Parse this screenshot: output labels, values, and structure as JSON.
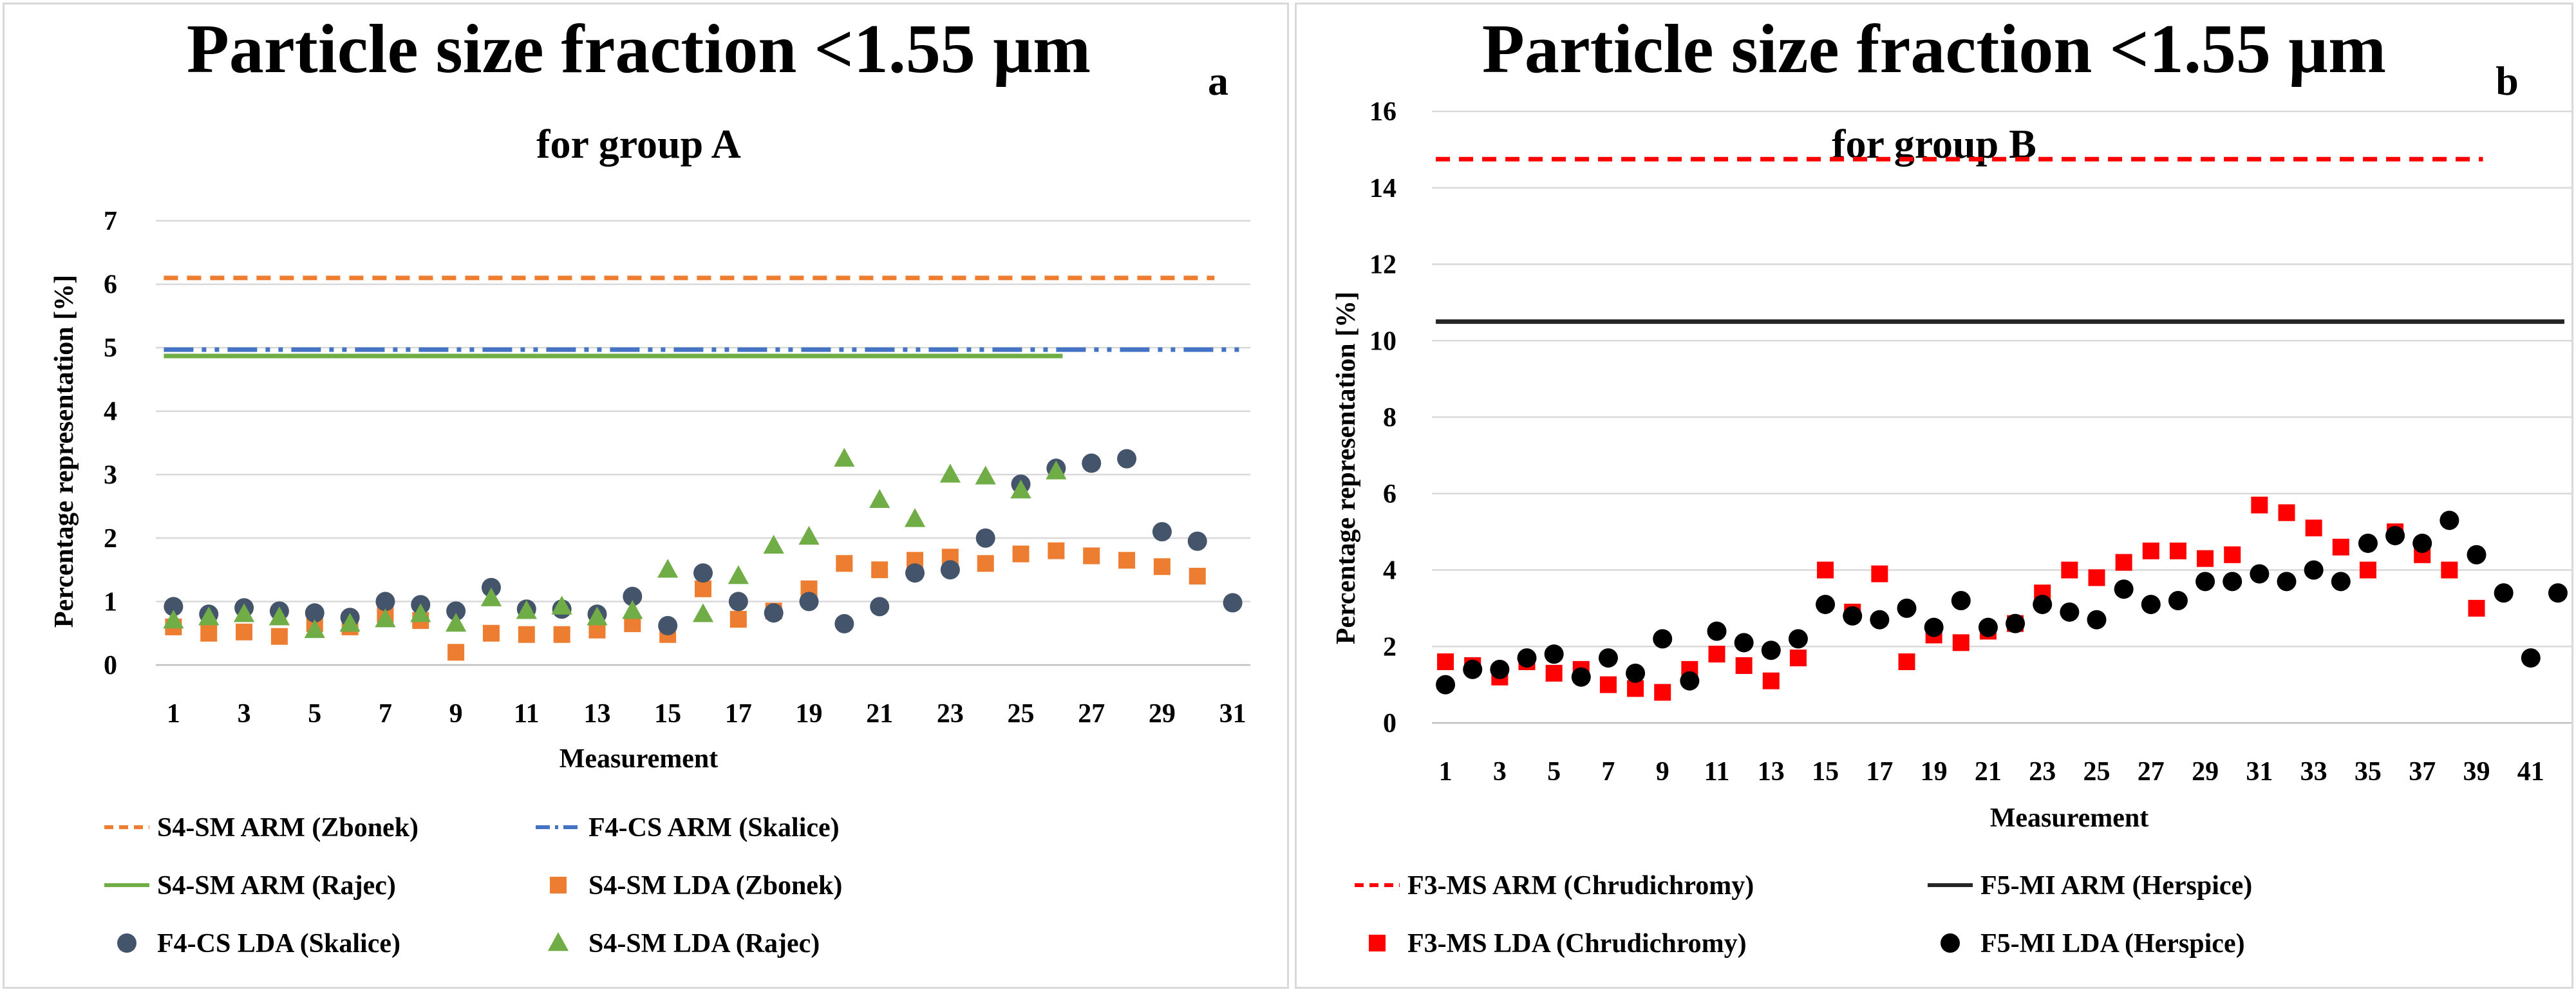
{
  "chart_data": [
    {
      "type": "scatter",
      "panel_letter": "a",
      "title": "Particle size fraction <1.55 µm",
      "subtitle": "for group A",
      "xlabel": "Measurement",
      "ylabel": "Percentage representation [%]",
      "xlim": [
        1,
        31
      ],
      "x_ticks": [
        "1",
        "3",
        "5",
        "7",
        "9",
        "11",
        "13",
        "15",
        "17",
        "19",
        "21",
        "23",
        "25",
        "27",
        "29",
        "31"
      ],
      "ylim": [
        0,
        7
      ],
      "y_ticks": [
        "0",
        "1",
        "2",
        "3",
        "4",
        "5",
        "6",
        "7"
      ],
      "grid": true,
      "legend_position": "bottom",
      "reference_lines": [
        {
          "name": "S4-SM ARM (Zbonek)",
          "value": 6.1,
          "x_range": [
            1,
            30.3
          ],
          "color": "#ed7d31",
          "style": "dashed"
        },
        {
          "name": "F4-CS ARM (Skalice)",
          "value": 4.97,
          "x_range": [
            1,
            31
          ],
          "color": "#4472c4",
          "style": "dashdotdot"
        },
        {
          "name": "S4-SM ARM (Rajec)",
          "value": 4.87,
          "x_range": [
            1,
            26
          ],
          "color": "#70ad47",
          "style": "solid"
        }
      ],
      "series": [
        {
          "name": "S4-SM LDA (Zbonek)",
          "marker": "square",
          "color": "#ed7d31",
          "x": [
            1,
            2,
            3,
            4,
            5,
            6,
            7,
            8,
            9,
            10,
            11,
            12,
            13,
            14,
            15,
            16,
            17,
            18,
            19,
            20,
            21,
            22,
            23,
            24,
            25,
            26,
            27,
            28,
            29,
            30
          ],
          "values": [
            0.6,
            0.5,
            0.52,
            0.45,
            0.65,
            0.6,
            0.8,
            0.7,
            0.2,
            0.5,
            0.48,
            0.48,
            0.55,
            0.65,
            0.48,
            1.2,
            0.72,
            0.85,
            1.2,
            1.6,
            1.5,
            1.65,
            1.7,
            1.6,
            1.75,
            1.8,
            1.72,
            1.65,
            1.55,
            1.4
          ]
        },
        {
          "name": "F4-CS LDA (Skalice)",
          "marker": "circle",
          "color": "#44546a",
          "x": [
            1,
            2,
            3,
            4,
            5,
            6,
            7,
            8,
            9,
            10,
            11,
            12,
            13,
            14,
            15,
            16,
            17,
            18,
            19,
            20,
            21,
            22,
            23,
            24,
            25,
            26,
            27,
            28,
            29,
            30,
            31
          ],
          "values": [
            0.92,
            0.8,
            0.9,
            0.85,
            0.82,
            0.75,
            1.0,
            0.95,
            0.85,
            1.22,
            0.88,
            0.88,
            0.8,
            1.08,
            0.62,
            1.45,
            1.0,
            0.82,
            1.0,
            0.65,
            0.92,
            1.45,
            1.5,
            2.0,
            2.85,
            3.1,
            3.18,
            3.25,
            2.1,
            1.95,
            0.98
          ]
        },
        {
          "name": "S4-SM LDA (Rajec)",
          "marker": "triangle",
          "color": "#70ad47",
          "x": [
            1,
            2,
            3,
            4,
            5,
            6,
            7,
            8,
            9,
            10,
            11,
            12,
            13,
            14,
            15,
            16,
            17,
            18,
            19,
            20,
            21,
            22,
            23,
            24,
            25,
            26
          ],
          "values": [
            0.7,
            0.75,
            0.8,
            0.75,
            0.55,
            0.65,
            0.72,
            0.8,
            0.65,
            1.05,
            0.85,
            0.92,
            0.75,
            0.85,
            1.5,
            0.8,
            1.4,
            1.88,
            2.02,
            3.25,
            2.6,
            2.3,
            3.0,
            2.97,
            2.75,
            3.05
          ]
        }
      ],
      "legend": [
        "S4-SM ARM (Zbonek)",
        "F4-CS ARM (Skalice)",
        "S4-SM ARM (Rajec)",
        "S4-SM LDA (Zbonek)",
        "F4-CS LDA (Skalice)",
        "S4-SM LDA (Rajec)"
      ]
    },
    {
      "type": "scatter",
      "panel_letter": "b",
      "title": "Particle size fraction <1.55 µm",
      "subtitle": "for group B",
      "xlabel": "Measurement",
      "ylabel": "Percentage representation [%]",
      "xlim": [
        1,
        42
      ],
      "x_ticks": [
        "1",
        "3",
        "5",
        "7",
        "9",
        "11",
        "13",
        "15",
        "17",
        "19",
        "21",
        "23",
        "25",
        "27",
        "29",
        "31",
        "33",
        "35",
        "37",
        "39",
        "41"
      ],
      "ylim": [
        0,
        16
      ],
      "y_ticks": [
        "0",
        "2",
        "4",
        "6",
        "8",
        "10",
        "12",
        "14",
        "16"
      ],
      "grid": true,
      "legend_position": "bottom",
      "reference_lines": [
        {
          "name": "F3-MS ARM (Chrudichromy)",
          "value": 14.75,
          "x_range": [
            1,
            39
          ],
          "color": "#ff0000",
          "style": "dashed"
        },
        {
          "name": "F5-MI ARM (Herspice)",
          "value": 10.5,
          "x_range": [
            1,
            42
          ],
          "color": "#262626",
          "style": "solid"
        }
      ],
      "series": [
        {
          "name": "F3-MS LDA (Chrudichromy)",
          "marker": "square",
          "color": "#ff0000",
          "x": [
            1,
            2,
            3,
            4,
            5,
            6,
            7,
            8,
            9,
            10,
            11,
            12,
            13,
            14,
            15,
            16,
            17,
            18,
            19,
            20,
            21,
            22,
            23,
            24,
            25,
            26,
            27,
            28,
            29,
            30,
            31,
            32,
            33,
            34,
            35,
            36,
            37,
            38,
            39
          ],
          "values": [
            1.6,
            1.5,
            1.2,
            1.6,
            1.3,
            1.4,
            1.0,
            0.9,
            0.8,
            1.4,
            1.8,
            1.5,
            1.1,
            1.7,
            4.0,
            2.9,
            3.9,
            1.6,
            2.3,
            2.1,
            2.4,
            2.6,
            3.4,
            4.0,
            3.8,
            4.2,
            4.5,
            4.5,
            4.3,
            4.4,
            5.7,
            5.5,
            5.1,
            4.6,
            4.0,
            5.0,
            4.4,
            4.0,
            3.0
          ]
        },
        {
          "name": "F5-MI LDA (Herspice)",
          "marker": "circle",
          "color": "#000000",
          "x": [
            1,
            2,
            3,
            4,
            5,
            6,
            7,
            8,
            9,
            10,
            11,
            12,
            13,
            14,
            15,
            16,
            17,
            18,
            19,
            20,
            21,
            22,
            23,
            24,
            25,
            26,
            27,
            28,
            29,
            30,
            31,
            32,
            33,
            34,
            35,
            36,
            37,
            38,
            39,
            40,
            41,
            42
          ],
          "values": [
            1.0,
            1.4,
            1.4,
            1.7,
            1.8,
            1.2,
            1.7,
            1.3,
            2.2,
            1.1,
            2.4,
            2.1,
            1.9,
            2.2,
            3.1,
            2.8,
            2.7,
            3.0,
            2.5,
            3.2,
            2.5,
            2.6,
            3.1,
            2.9,
            2.7,
            3.5,
            3.1,
            3.2,
            3.7,
            3.7,
            3.9,
            3.7,
            4.0,
            3.7,
            4.7,
            4.9,
            4.7,
            5.3,
            4.4,
            3.4,
            1.7,
            3.4
          ]
        }
      ],
      "legend": [
        "F3-MS ARM (Chrudichromy)",
        "F5-MI ARM (Herspice)",
        "F3-MS LDA (Chrudichromy)",
        "F5-MI LDA (Herspice)"
      ]
    }
  ]
}
